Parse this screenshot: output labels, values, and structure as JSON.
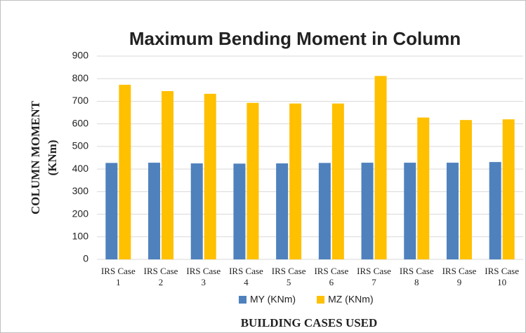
{
  "chart_data": {
    "type": "bar",
    "title": "Maximum Bending Moment in Column",
    "y_label": [
      "COLUMN MOMENT",
      "(KNm)"
    ],
    "x_label": "BUILDING CASES USED",
    "categories": [
      "IRS Case 1",
      "IRS Case 2",
      "IRS Case 3",
      "IRS Case 4",
      "IRS Case 5",
      "IRS Case 6",
      "IRS Case 7",
      "IRS Case 8",
      "IRS Case 9",
      "IRS Case 10"
    ],
    "series": [
      {
        "name": "MY (KNm)",
        "color": "#4f81bd",
        "values": [
          427,
          428,
          425,
          424,
          425,
          427,
          428,
          428,
          428,
          431
        ]
      },
      {
        "name": "MZ (KNm)",
        "color": "#ffc000",
        "values": [
          773,
          745,
          733,
          693,
          690,
          690,
          812,
          628,
          617,
          620
        ]
      }
    ],
    "ylim": [
      0,
      900
    ],
    "yticks": [
      0,
      100,
      200,
      300,
      400,
      500,
      600,
      700,
      800,
      900
    ],
    "grid": true,
    "legend": "bottom"
  }
}
